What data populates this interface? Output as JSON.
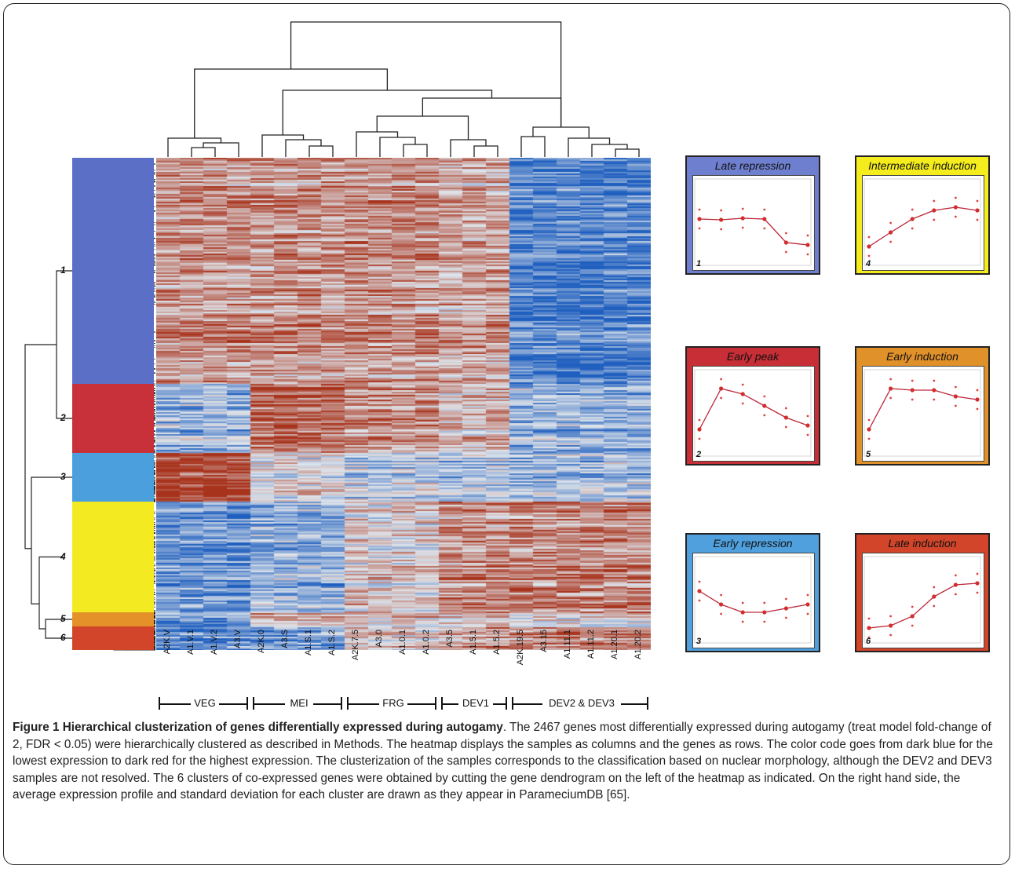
{
  "figure": {
    "caption_title": "Figure 1 Hierarchical clusterization of genes differentially expressed during autogamy",
    "caption_body": ". The 2467 genes most differentially expressed during autogamy (treat model fold-change of 2, FDR < 0.05) were hierarchically clustered as described in Methods. The heatmap displays the samples as columns and the genes as rows. The color code goes from dark blue for the lowest expression to dark red for the highest expression. The clusterization of the samples corresponds to the classification based on nuclear morphology, although the DEV2 and DEV3 samples are not resolved. The 6 clusters of co-expressed genes were obtained by cutting the gene dendrogram on the left of the heatmap as indicated. On the right hand side, the average expression profile and standard deviation for each cluster are drawn as they appear in ParameciumDB [65]."
  },
  "heatmap": {
    "samples": [
      "A2K.V",
      "A1.V.1",
      "A1.V.2",
      "A3.V",
      "A2K.0",
      "A3.S",
      "A1.S.1",
      "A1.S.2",
      "A2K.7.5",
      "A3.0",
      "A1.0.1",
      "A1.0.2",
      "A3.5",
      "A1.5.1",
      "A1.5.2",
      "A2K.19.5",
      "A3.15",
      "A1.11.1",
      "A1.11.2",
      "A1.20.1",
      "A1.20.2"
    ],
    "groups": [
      {
        "label": "VEG",
        "first": 0,
        "last": 3
      },
      {
        "label": "MEI",
        "first": 4,
        "last": 7
      },
      {
        "label": "FRG",
        "first": 8,
        "last": 11
      },
      {
        "label": "DEV1",
        "first": 12,
        "last": 14
      },
      {
        "label": "DEV2 & DEV3",
        "first": 15,
        "last": 20
      }
    ],
    "color_low": "#1f5fbf",
    "color_mid": "#dfe4ea",
    "color_high": "#a8331c"
  },
  "gene_clusters": [
    {
      "number": "1",
      "color": "#5b6fc6",
      "fraction": 0.46
    },
    {
      "number": "2",
      "color": "#c8303a",
      "fraction": 0.14
    },
    {
      "number": "3",
      "color": "#4a9fdc",
      "fraction": 0.099
    },
    {
      "number": "4",
      "color": "#f4ea22",
      "fraction": 0.225
    },
    {
      "number": "5",
      "color": "#e39128",
      "fraction": 0.028
    },
    {
      "number": "6",
      "color": "#d2452a",
      "fraction": 0.018
    }
  ],
  "profiles": [
    {
      "number": "1",
      "title": "Late repression",
      "color": "#6f7fcf",
      "values": [
        0.55,
        0.54,
        0.56,
        0.55,
        0.25,
        0.22
      ]
    },
    {
      "number": "4",
      "title": "Intermediate induction",
      "color": "#f4ec1c",
      "values": [
        0.2,
        0.38,
        0.55,
        0.66,
        0.7,
        0.66
      ]
    },
    {
      "number": "2",
      "title": "Early peak",
      "color": "#c72e36",
      "values": [
        0.3,
        0.82,
        0.75,
        0.6,
        0.45,
        0.35
      ]
    },
    {
      "number": "5",
      "title": "Early induction",
      "color": "#e1912a",
      "values": [
        0.3,
        0.82,
        0.8,
        0.8,
        0.72,
        0.68
      ]
    },
    {
      "number": "3",
      "title": "Early repression",
      "color": "#4fa0dd",
      "values": [
        0.62,
        0.45,
        0.35,
        0.35,
        0.4,
        0.45
      ]
    },
    {
      "number": "6",
      "title": "Late induction",
      "color": "#d2452a",
      "values": [
        0.15,
        0.18,
        0.3,
        0.55,
        0.7,
        0.72
      ]
    }
  ]
}
